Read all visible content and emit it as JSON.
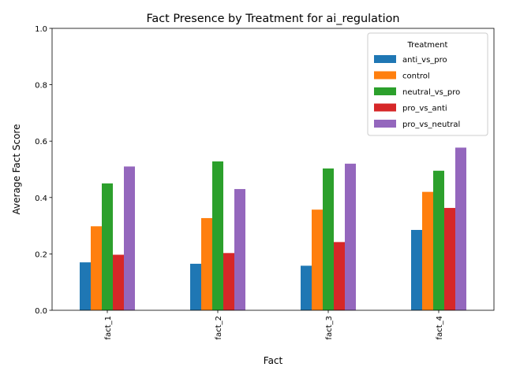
{
  "chart_data": {
    "type": "bar",
    "title": "Fact Presence by Treatment for ai_regulation",
    "xlabel": "Fact",
    "ylabel": "Average Fact Score",
    "categories": [
      "fact_1",
      "fact_2",
      "fact_3",
      "fact_4"
    ],
    "ylim": [
      0,
      1.0
    ],
    "yticks": [
      "0.0",
      "0.2",
      "0.4",
      "0.6",
      "0.8",
      "1.0"
    ],
    "grid": false,
    "legend": {
      "title": "Treatment",
      "placement": "top-right"
    },
    "series": [
      {
        "name": "anti_vs_pro",
        "color": "#1f77b4",
        "values": [
          0.17,
          0.165,
          0.158,
          0.285
        ]
      },
      {
        "name": "control",
        "color": "#ff7f0e",
        "values": [
          0.298,
          0.327,
          0.357,
          0.42
        ]
      },
      {
        "name": "neutral_vs_pro",
        "color": "#2ca02c",
        "values": [
          0.45,
          0.528,
          0.503,
          0.495
        ]
      },
      {
        "name": "pro_vs_anti",
        "color": "#d62728",
        "values": [
          0.197,
          0.203,
          0.242,
          0.363
        ]
      },
      {
        "name": "pro_vs_neutral",
        "color": "#9467bd",
        "values": [
          0.51,
          0.43,
          0.52,
          0.577
        ]
      }
    ]
  }
}
